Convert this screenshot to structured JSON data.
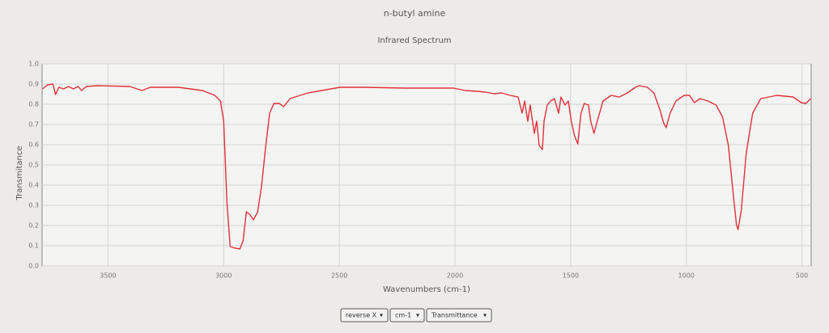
{
  "chart_data": {
    "type": "line",
    "title": "n-butyl amine",
    "subtitle": "Infrared Spectrum",
    "x_label": "Wavenumbers (cm-1)",
    "y_label": "Transmitance",
    "x_reversed": true,
    "grid": true,
    "xlim": [
      3785,
      460
    ],
    "xticks": [
      3500,
      3000,
      2500,
      2000,
      1500,
      1000,
      500
    ],
    "ylim": [
      0,
      1
    ],
    "yticks": [
      {
        "value": 0,
        "label": "0.0"
      },
      0.1,
      0.2,
      0.3,
      0.4,
      0.5,
      0.6,
      0.7,
      0.8,
      0.9,
      {
        "value": 1,
        "label": "1.0"
      }
    ],
    "series": [
      {
        "color": "#e0323a",
        "x": [
          3783,
          3762,
          3738,
          3727,
          3713,
          3692,
          3671,
          3650,
          3629,
          3615,
          3594,
          3545,
          3406,
          3353,
          3318,
          3196,
          3091,
          3038,
          3014,
          3000,
          2986,
          2972,
          2951,
          2930,
          2916,
          2902,
          2888,
          2871,
          2853,
          2836,
          2818,
          2801,
          2783,
          2759,
          2741,
          2713,
          2636,
          2497,
          2392,
          2217,
          2007,
          1955,
          1902,
          1867,
          1832,
          1797,
          1762,
          1727,
          1710,
          1699,
          1685,
          1675,
          1657,
          1647,
          1636,
          1622,
          1615,
          1601,
          1587,
          1570,
          1552,
          1542,
          1524,
          1510,
          1497,
          1483,
          1469,
          1455,
          1441,
          1423,
          1413,
          1399,
          1385,
          1360,
          1325,
          1290,
          1255,
          1220,
          1203,
          1168,
          1140,
          1115,
          1098,
          1087,
          1070,
          1045,
          1010,
          986,
          965,
          941,
          906,
          871,
          843,
          818,
          797,
          783,
          776,
          762,
          741,
          713,
          678,
          608,
          538,
          503,
          483,
          462
        ],
        "values": [
          0.876,
          0.896,
          0.9,
          0.848,
          0.884,
          0.876,
          0.888,
          0.876,
          0.888,
          0.868,
          0.888,
          0.892,
          0.888,
          0.868,
          0.884,
          0.884,
          0.868,
          0.844,
          0.816,
          0.716,
          0.316,
          0.096,
          0.088,
          0.084,
          0.124,
          0.268,
          0.256,
          0.228,
          0.268,
          0.396,
          0.596,
          0.756,
          0.804,
          0.804,
          0.788,
          0.828,
          0.856,
          0.884,
          0.884,
          0.88,
          0.88,
          0.868,
          0.864,
          0.86,
          0.852,
          0.856,
          0.844,
          0.836,
          0.756,
          0.816,
          0.716,
          0.796,
          0.656,
          0.716,
          0.596,
          0.576,
          0.716,
          0.796,
          0.816,
          0.828,
          0.756,
          0.836,
          0.796,
          0.816,
          0.716,
          0.644,
          0.604,
          0.756,
          0.804,
          0.796,
          0.716,
          0.656,
          0.716,
          0.816,
          0.844,
          0.836,
          0.856,
          0.884,
          0.892,
          0.884,
          0.856,
          0.776,
          0.708,
          0.684,
          0.756,
          0.816,
          0.844,
          0.844,
          0.808,
          0.828,
          0.816,
          0.796,
          0.736,
          0.596,
          0.356,
          0.204,
          0.18,
          0.276,
          0.556,
          0.756,
          0.828,
          0.844,
          0.836,
          0.808,
          0.804,
          0.828
        ]
      }
    ]
  },
  "controls": [
    "reverse X",
    "cm-1",
    "Transmittance"
  ]
}
